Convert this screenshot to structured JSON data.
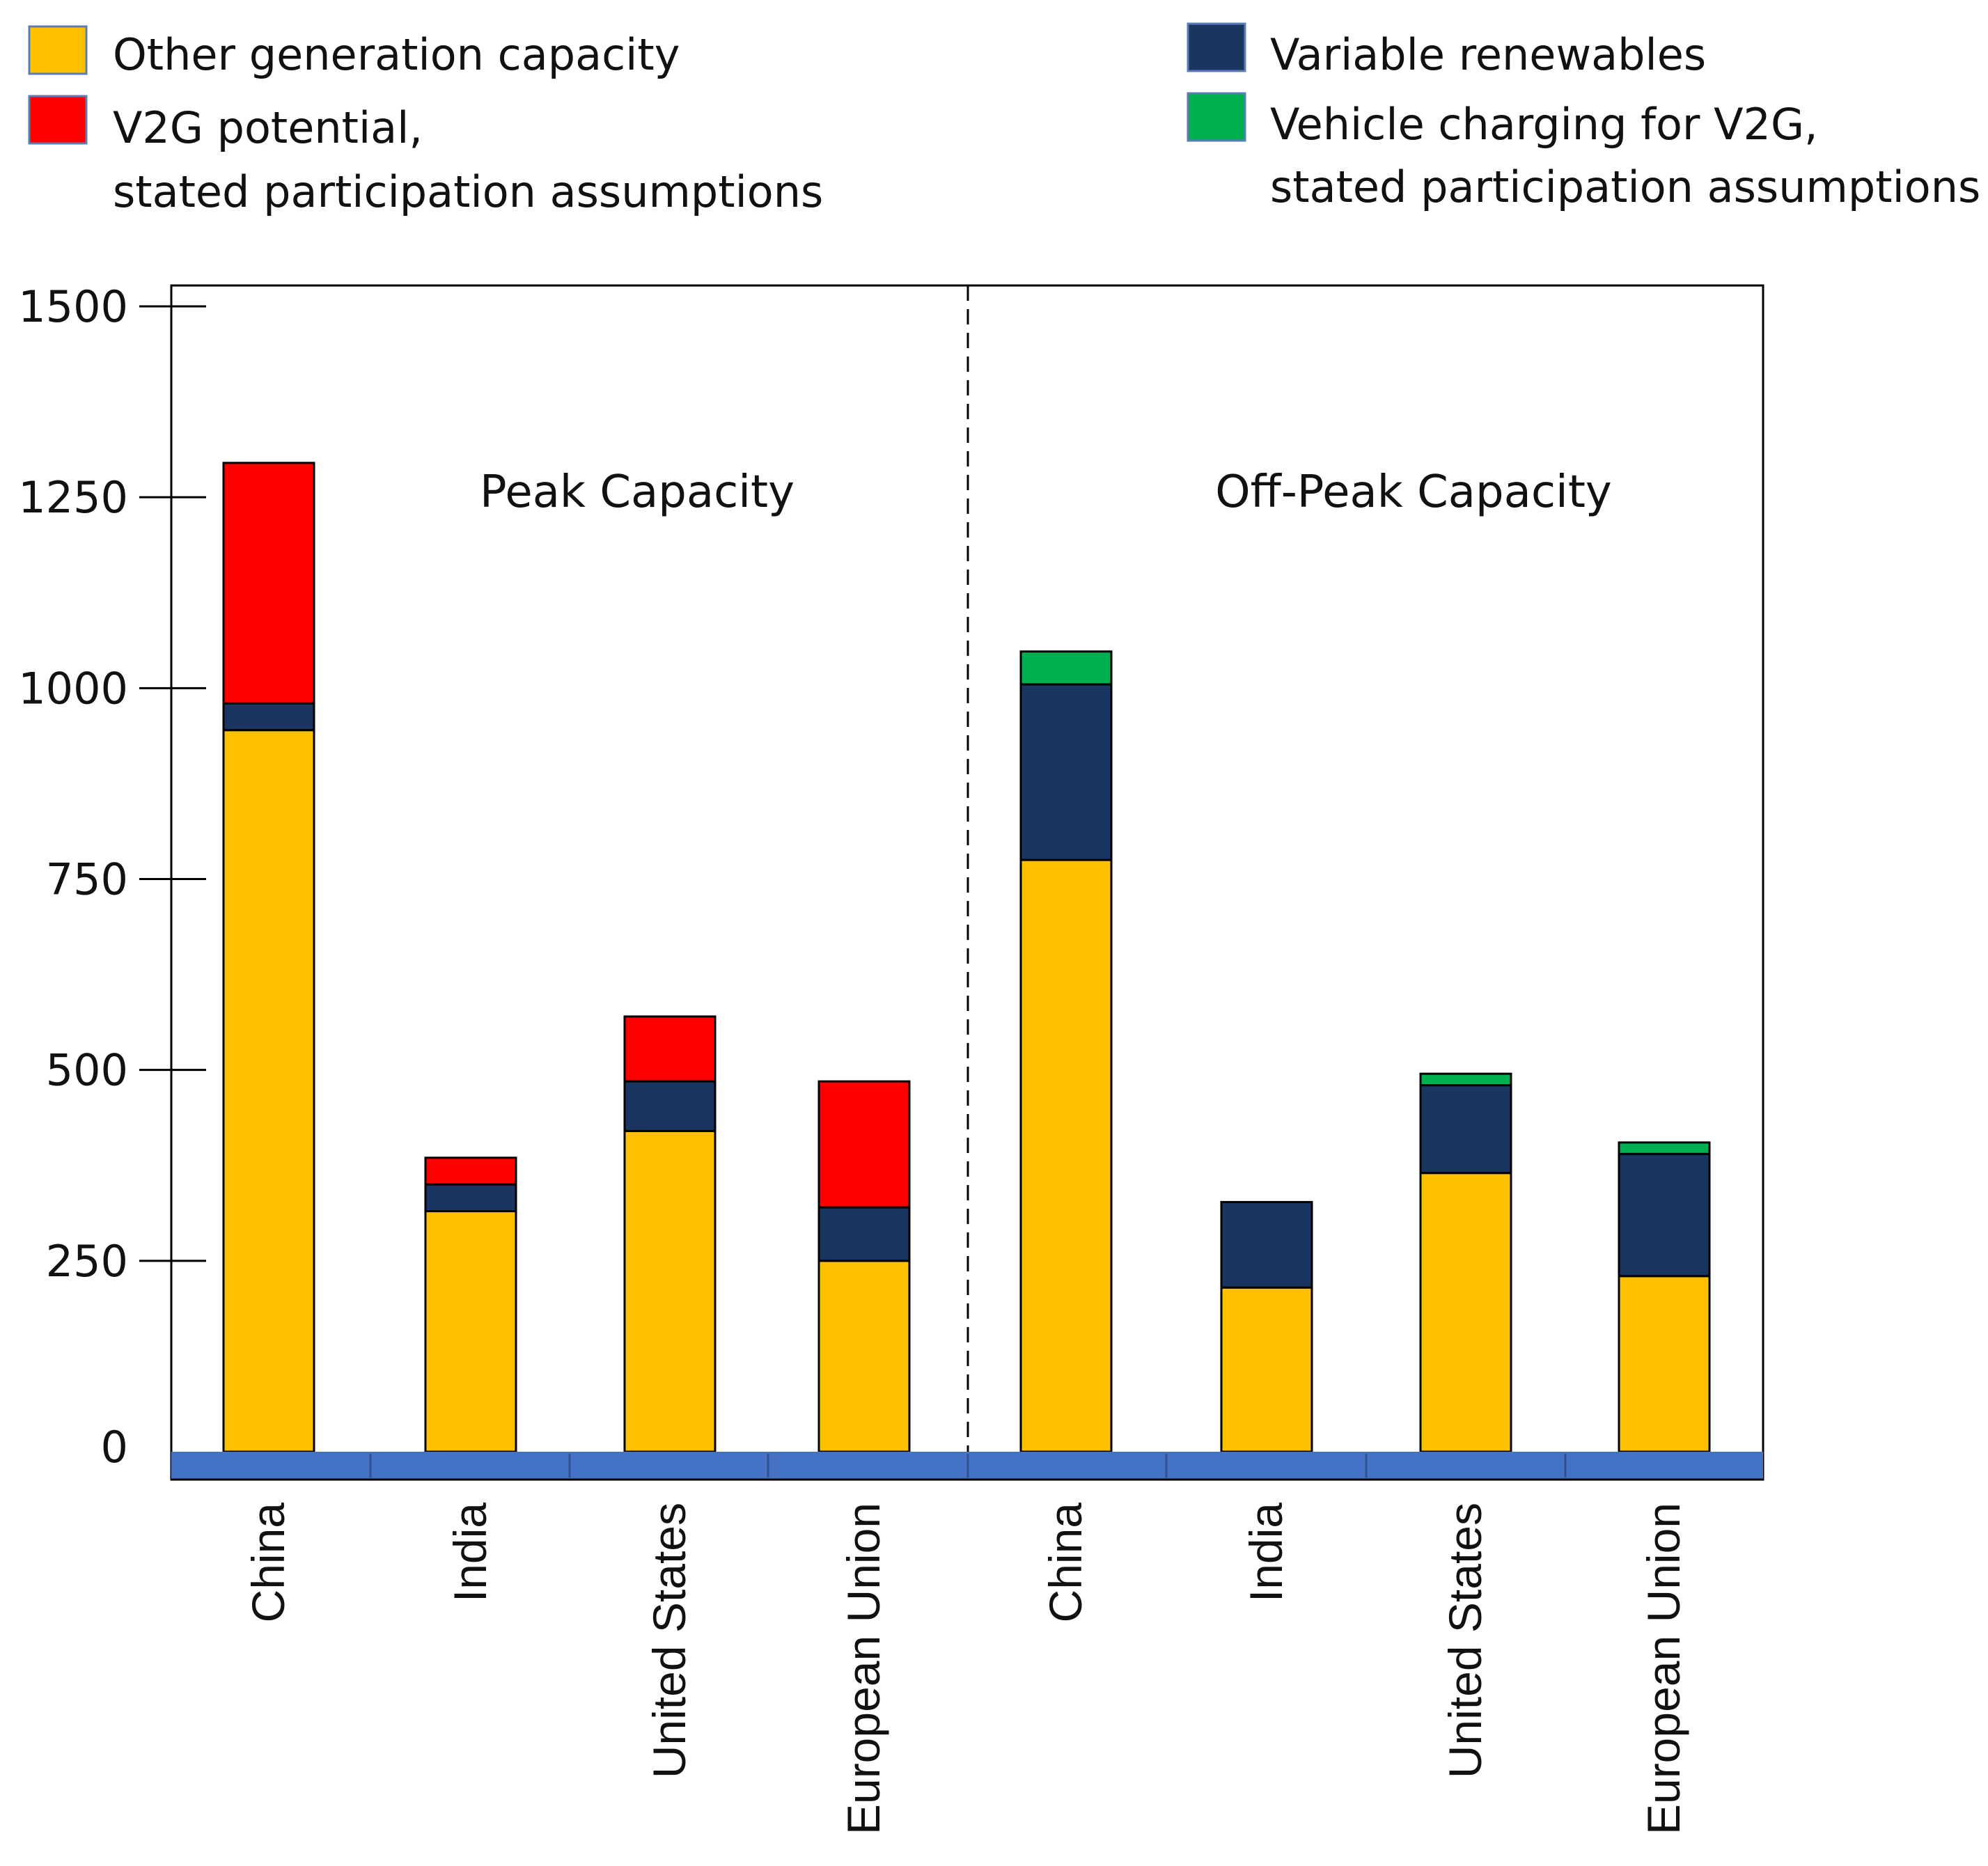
{
  "chart_data": {
    "type": "bar",
    "stacked": true,
    "title": "",
    "xlabel": "",
    "ylabel": "",
    "ylim": [
      0,
      1500
    ],
    "yticks": [
      0,
      250,
      500,
      750,
      1000,
      1250,
      1500
    ],
    "groups": [
      {
        "name": "Peak Capacity",
        "categories": [
          "China",
          "India",
          "United States",
          "European Union"
        ]
      },
      {
        "name": "Off-Peak Capacity",
        "categories": [
          "China",
          "India",
          "United States",
          "European Union"
        ]
      }
    ],
    "series": [
      {
        "name": "Other generation capacity",
        "color": "#FFC000",
        "values": [
          945,
          315,
          420,
          250,
          775,
          215,
          365,
          230
        ]
      },
      {
        "name": "Variable renewables",
        "color": "#1A3560",
        "values": [
          35,
          35,
          65,
          70,
          230,
          112,
          115,
          160
        ]
      },
      {
        "name": "V2G potential, stated participation assumptions",
        "color": "#FF0000",
        "values": [
          315,
          35,
          85,
          165,
          0,
          0,
          0,
          0
        ]
      },
      {
        "name": "Vehicle charging for V2G, stated participation assumptions",
        "color": "#00B050",
        "values": [
          0,
          0,
          0,
          0,
          43,
          0,
          15,
          15
        ]
      }
    ],
    "legend": {
      "position": "top",
      "entries": [
        {
          "lines": [
            "Other generation capacity"
          ],
          "color": "#FFC000"
        },
        {
          "lines": [
            "V2G potential,",
            "stated participation assumptions"
          ],
          "color": "#FF0000"
        },
        {
          "lines": [
            "Variable renewables"
          ],
          "color": "#1A3560"
        },
        {
          "lines": [
            "Vehicle charging for V2G,",
            "stated participation assumptions"
          ],
          "color": "#00B050"
        }
      ]
    },
    "axis_band_color": "#4472C4"
  }
}
